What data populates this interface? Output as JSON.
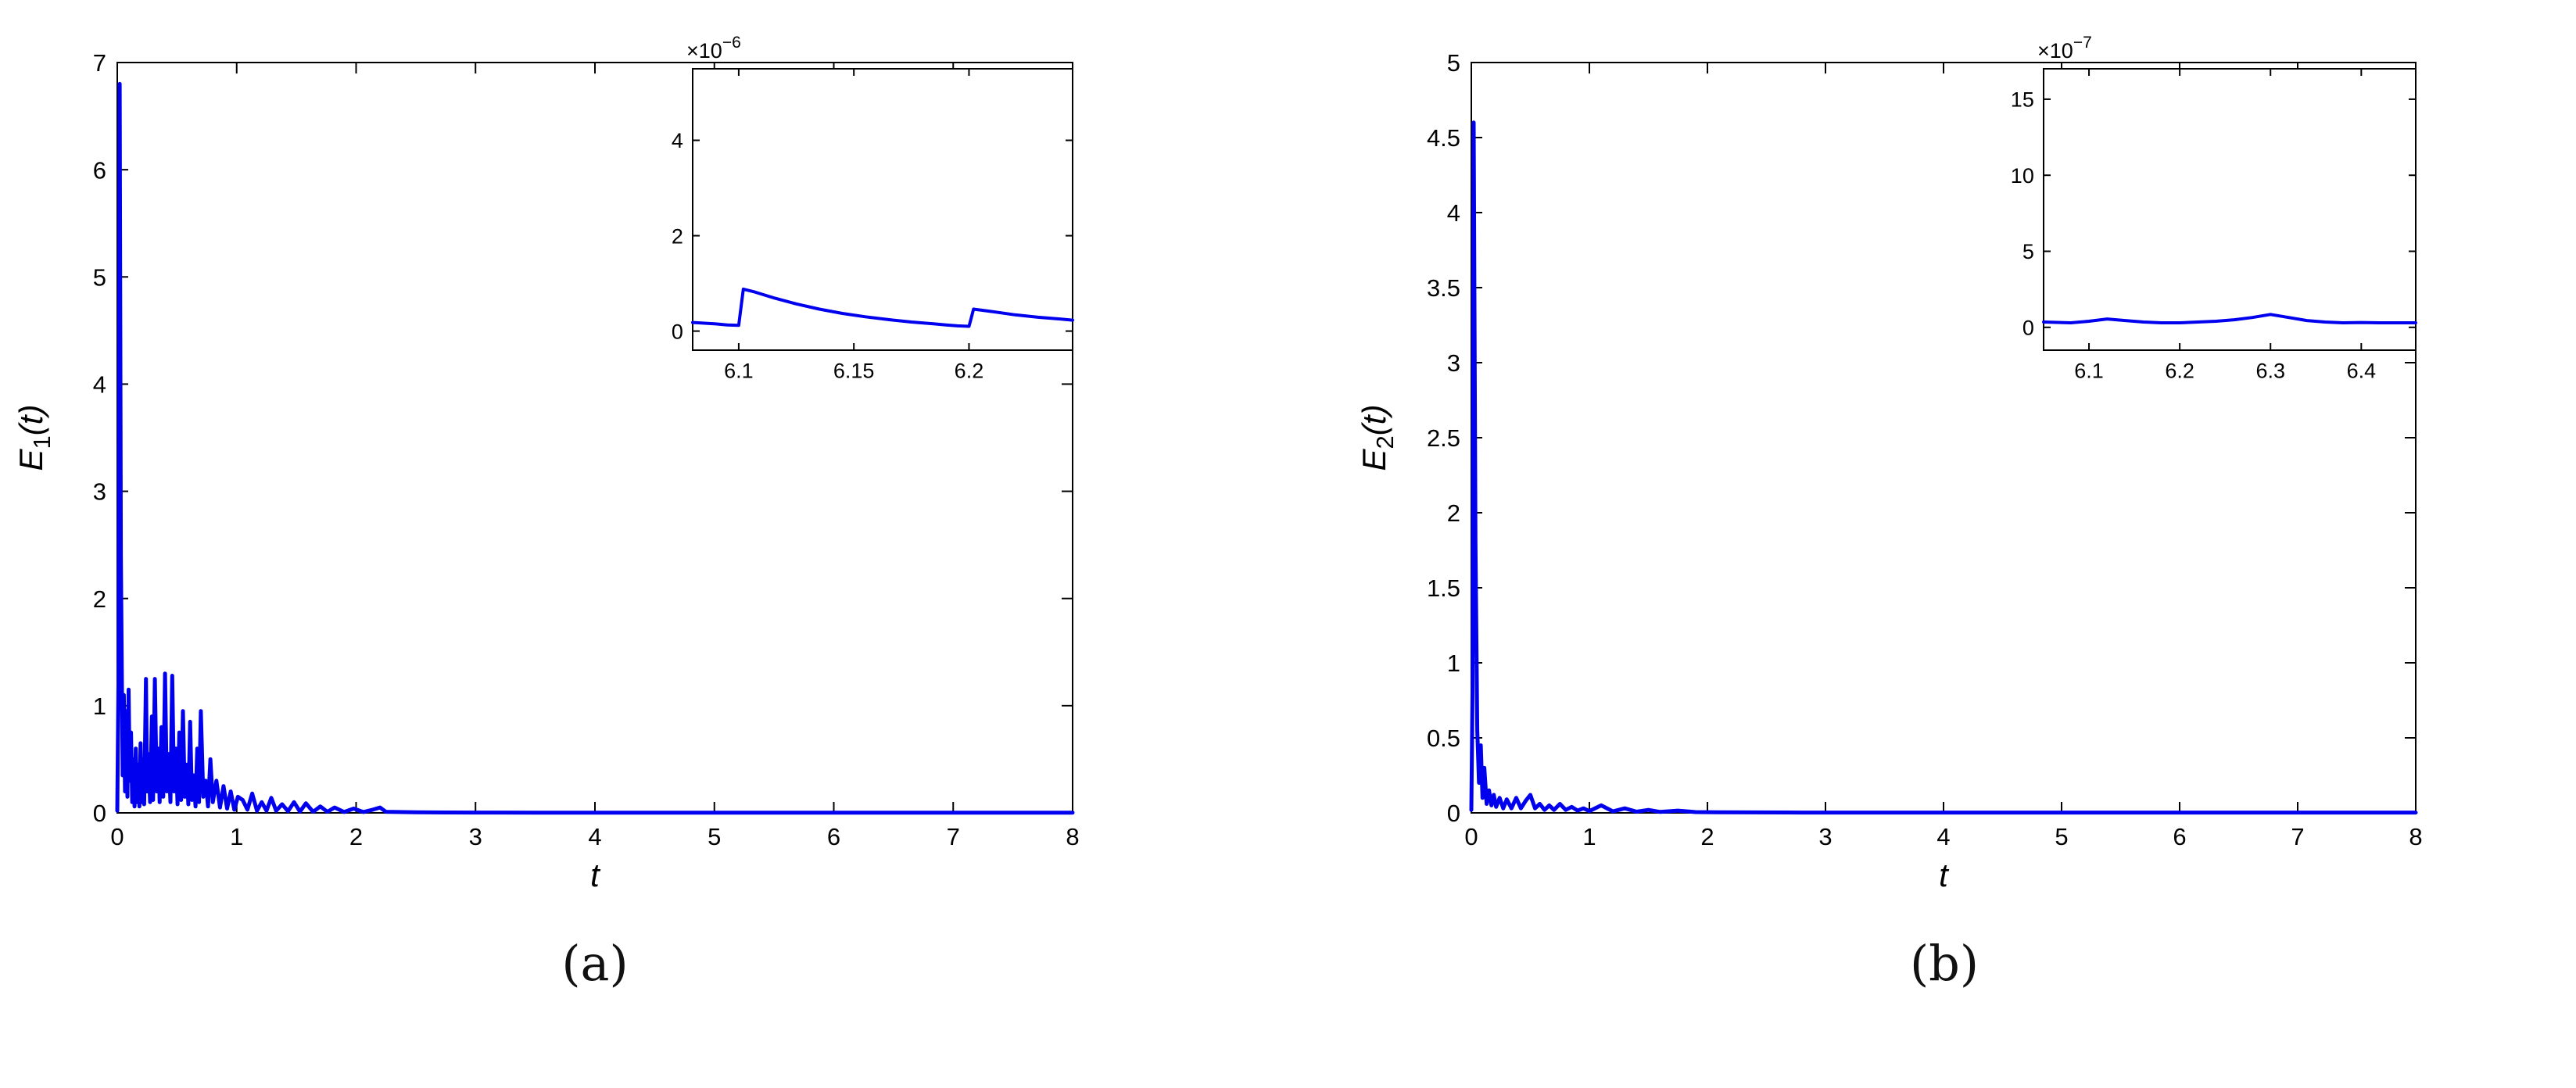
{
  "figure": {
    "background": "#ffffff",
    "panels": [
      {
        "caption": "(a)"
      },
      {
        "caption": "(b)"
      }
    ]
  },
  "chart_data": [
    {
      "type": "line",
      "panel": "a",
      "title": "",
      "xlabel": "t",
      "ylabel": {
        "pre": "E",
        "sub": "1",
        "post": "(t)"
      },
      "xlim": [
        0,
        8
      ],
      "ylim": [
        0,
        7
      ],
      "xticks": [
        0,
        1,
        2,
        3,
        4,
        5,
        6,
        7,
        8
      ],
      "yticks": [
        0,
        1,
        2,
        3,
        4,
        5,
        6,
        7
      ],
      "grid": false,
      "legend": "none",
      "line_color": "#0000ee",
      "axis_color": "#000000",
      "series": [
        {
          "name": "E1(t)",
          "x": [
            0,
            0.01,
            0.02,
            0.03,
            0.045,
            0.055,
            0.065,
            0.075,
            0.085,
            0.095,
            0.105,
            0.115,
            0.125,
            0.135,
            0.145,
            0.155,
            0.165,
            0.175,
            0.185,
            0.195,
            0.205,
            0.215,
            0.225,
            0.24,
            0.25,
            0.26,
            0.275,
            0.29,
            0.3,
            0.315,
            0.33,
            0.345,
            0.355,
            0.37,
            0.385,
            0.4,
            0.415,
            0.43,
            0.445,
            0.46,
            0.475,
            0.49,
            0.505,
            0.52,
            0.535,
            0.55,
            0.565,
            0.58,
            0.595,
            0.61,
            0.625,
            0.64,
            0.655,
            0.67,
            0.685,
            0.7,
            0.72,
            0.74,
            0.76,
            0.78,
            0.8,
            0.83,
            0.86,
            0.89,
            0.92,
            0.95,
            0.98,
            1.01,
            1.05,
            1.09,
            1.13,
            1.17,
            1.21,
            1.25,
            1.29,
            1.33,
            1.38,
            1.43,
            1.48,
            1.53,
            1.58,
            1.64,
            1.7,
            1.76,
            1.82,
            1.9,
            1.98,
            2.06,
            2.14,
            2.2,
            2.25,
            2.35,
            2.5,
            2.75,
            3,
            3.5,
            4,
            5,
            6,
            7,
            8
          ],
          "y": [
            0.02,
            1.2,
            6.8,
            2.4,
            0.35,
            1.1,
            0.2,
            0.95,
            0.15,
            1.15,
            0.3,
            0.75,
            0.1,
            0.5,
            0.06,
            0.6,
            0.1,
            0.45,
            0.06,
            0.65,
            0.1,
            0.5,
            0.08,
            1.25,
            0.2,
            0.55,
            0.1,
            0.9,
            0.12,
            1.25,
            0.2,
            0.6,
            0.1,
            0.8,
            0.15,
            1.3,
            0.2,
            0.55,
            0.1,
            1.28,
            0.2,
            0.6,
            0.08,
            0.75,
            0.12,
            0.95,
            0.15,
            0.45,
            0.08,
            0.85,
            0.12,
            0.35,
            0.06,
            0.6,
            0.1,
            0.95,
            0.15,
            0.3,
            0.06,
            0.5,
            0.1,
            0.3,
            0.05,
            0.25,
            0.04,
            0.2,
            0.03,
            0.15,
            0.12,
            0.03,
            0.18,
            0.02,
            0.1,
            0.02,
            0.14,
            0.02,
            0.08,
            0.015,
            0.1,
            0.012,
            0.09,
            0.01,
            0.06,
            0.01,
            0.05,
            0.008,
            0.04,
            0.008,
            0.03,
            0.05,
            0.01,
            0.008,
            0.005,
            0.004,
            0.003,
            0.002,
            0.002,
            0.002,
            0.002,
            0.002,
            0.002
          ]
        }
      ],
      "inset": {
        "scale": {
          "base": "×10",
          "exp": "−6"
        },
        "unit": 1e-06,
        "xlim": [
          6.08,
          6.245
        ],
        "ylim": [
          -0.4,
          5.5
        ],
        "xticks": [
          6.1,
          6.15,
          6.2
        ],
        "yticks": [
          0,
          2,
          4
        ],
        "x": [
          6.08,
          6.09,
          6.095,
          6.1,
          6.102,
          6.107,
          6.115,
          6.125,
          6.135,
          6.145,
          6.155,
          6.165,
          6.175,
          6.185,
          6.19,
          6.195,
          6.2,
          6.202,
          6.21,
          6.22,
          6.23,
          6.24,
          6.245
        ],
        "y": [
          0.18,
          0.15,
          0.13,
          0.12,
          0.88,
          0.82,
          0.7,
          0.57,
          0.46,
          0.37,
          0.3,
          0.24,
          0.19,
          0.15,
          0.13,
          0.11,
          0.1,
          0.46,
          0.41,
          0.34,
          0.29,
          0.25,
          0.23
        ]
      }
    },
    {
      "type": "line",
      "panel": "b",
      "title": "",
      "xlabel": "t",
      "ylabel": {
        "pre": "E",
        "sub": "2",
        "post": "(t)"
      },
      "xlim": [
        0,
        8
      ],
      "ylim": [
        0,
        5
      ],
      "xticks": [
        0,
        1,
        2,
        3,
        4,
        5,
        6,
        7,
        8
      ],
      "yticks": [
        0,
        0.5,
        1,
        1.5,
        2,
        2.5,
        3,
        3.5,
        4,
        4.5,
        5
      ],
      "grid": false,
      "legend": "none",
      "line_color": "#0000ee",
      "axis_color": "#000000",
      "series": [
        {
          "name": "E2(t)",
          "x": [
            0,
            0.01,
            0.02,
            0.035,
            0.05,
            0.065,
            0.08,
            0.095,
            0.11,
            0.13,
            0.15,
            0.17,
            0.19,
            0.21,
            0.24,
            0.27,
            0.3,
            0.34,
            0.38,
            0.42,
            0.46,
            0.5,
            0.54,
            0.58,
            0.62,
            0.66,
            0.7,
            0.75,
            0.8,
            0.85,
            0.9,
            0.95,
            1,
            1.1,
            1.2,
            1.3,
            1.4,
            1.5,
            1.6,
            1.75,
            1.9,
            2.1,
            2.4,
            2.8,
            3.2,
            4,
            5,
            6,
            7,
            8
          ],
          "y": [
            0.02,
            0.8,
            4.6,
            1.8,
            0.55,
            0.2,
            0.45,
            0.1,
            0.3,
            0.06,
            0.15,
            0.05,
            0.12,
            0.04,
            0.1,
            0.03,
            0.09,
            0.03,
            0.1,
            0.03,
            0.08,
            0.12,
            0.03,
            0.06,
            0.02,
            0.05,
            0.02,
            0.06,
            0.02,
            0.04,
            0.015,
            0.03,
            0.012,
            0.05,
            0.01,
            0.03,
            0.008,
            0.02,
            0.006,
            0.015,
            0.005,
            0.004,
            0.003,
            0.002,
            0.002,
            0.002,
            0.002,
            0.002,
            0.002,
            0.002
          ]
        }
      ],
      "inset": {
        "scale": {
          "base": "×10",
          "exp": "−7"
        },
        "unit": 1e-07,
        "xlim": [
          6.05,
          6.46
        ],
        "ylim": [
          -1.5,
          17
        ],
        "xticks": [
          6.1,
          6.2,
          6.3,
          6.4
        ],
        "yticks": [
          0,
          5,
          10,
          15
        ],
        "x": [
          6.05,
          6.08,
          6.1,
          6.12,
          6.14,
          6.16,
          6.18,
          6.2,
          6.22,
          6.24,
          6.26,
          6.28,
          6.3,
          6.32,
          6.34,
          6.36,
          6.38,
          6.4,
          6.42,
          6.46
        ],
        "y": [
          0.35,
          0.3,
          0.4,
          0.55,
          0.45,
          0.35,
          0.3,
          0.3,
          0.35,
          0.4,
          0.5,
          0.65,
          0.85,
          0.65,
          0.45,
          0.35,
          0.3,
          0.32,
          0.3,
          0.3
        ]
      }
    }
  ]
}
